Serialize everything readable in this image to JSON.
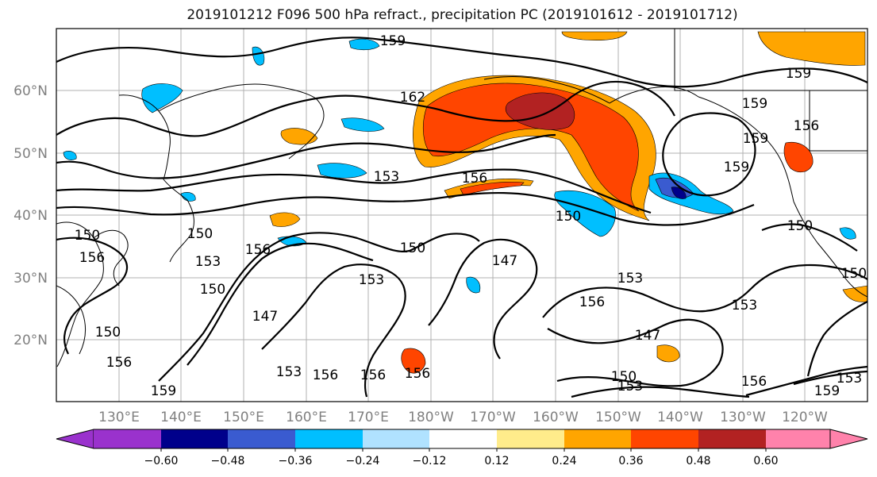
{
  "title": "2019101212 F096 500 hPa refract., precipitation PC (2019101612 - 2019101712)",
  "map": {
    "lat_labels": [
      "60°N",
      "50°N",
      "40°N",
      "30°N",
      "20°N"
    ],
    "lon_labels": [
      "130°E",
      "140°E",
      "150°E",
      "160°E",
      "170°E",
      "180°W",
      "170°W",
      "160°W",
      "150°W",
      "140°W",
      "130°W",
      "120°W"
    ],
    "contour_labels": [
      "159",
      "159",
      "159",
      "162",
      "153",
      "156",
      "150",
      "150",
      "150",
      "150",
      "153",
      "150",
      "156",
      "156",
      "153",
      "147",
      "147",
      "156",
      "153",
      "147",
      "150",
      "153",
      "153",
      "156",
      "156",
      "150",
      "150",
      "156",
      "153",
      "156",
      "156",
      "159",
      "159",
      "159",
      "153",
      "159",
      "156",
      "150"
    ]
  },
  "colorbar": {
    "colors": [
      "#9a32cd",
      "#00008b",
      "#3a5bd0",
      "#00bfff",
      "#b0e2ff",
      "#ffffff",
      "#ffec8b",
      "#ffa500",
      "#ff4500",
      "#b22222",
      "#ff82ab"
    ],
    "ticks": [
      "−0.60",
      "−0.48",
      "−0.36",
      "−0.24",
      "−0.12",
      "0.12",
      "0.24",
      "0.36",
      "0.48",
      "0.60"
    ]
  }
}
